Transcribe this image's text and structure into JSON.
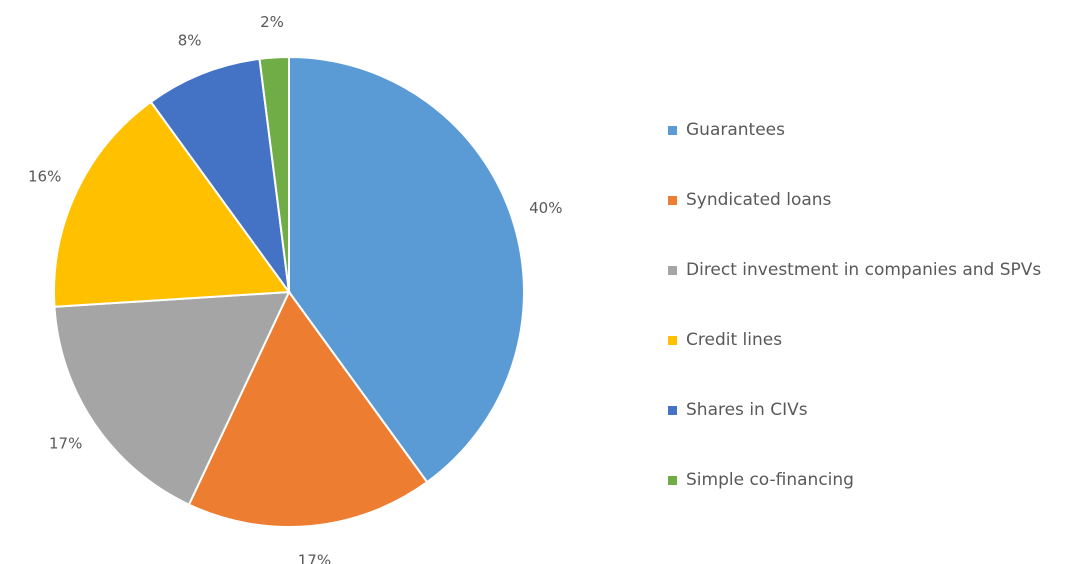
{
  "chart_data": {
    "type": "pie",
    "categories": [
      "Guarantees",
      "Syndicated loans",
      "Direct investment in companies and SPVs",
      "Credit lines",
      "Shares in CIVs",
      "Simple co-financing"
    ],
    "values": [
      40,
      17,
      17,
      16,
      8,
      2
    ],
    "value_labels": [
      "40%",
      "17%",
      "17%",
      "16%",
      "8%",
      "2%"
    ],
    "colors": [
      "#5b9bd5",
      "#ed7d31",
      "#a5a5a5",
      "#ffc000",
      "#4472c4",
      "#70ad47"
    ],
    "legend": "right"
  }
}
